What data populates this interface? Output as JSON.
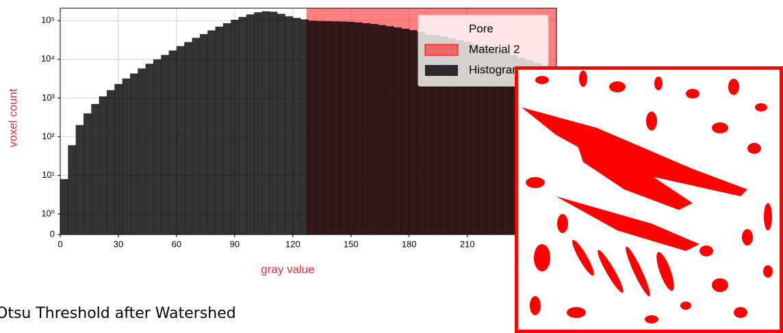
{
  "chart_data": {
    "type": "histogram",
    "xlabel": "gray value",
    "ylabel": "voxel count",
    "label_color": "#e0303a",
    "yscale": "symlog",
    "grid": true,
    "legend": "upper right",
    "xlim": [
      0,
      256
    ],
    "ylim": [
      0,
      210000
    ],
    "xticks": [
      0,
      30,
      60,
      90,
      120,
      150,
      180,
      210
    ],
    "yticks": [
      0,
      {
        "value": 1,
        "label": "10⁰"
      },
      {
        "value": 10,
        "label": "10¹"
      },
      {
        "value": 100,
        "label": "10²"
      },
      {
        "value": 1000,
        "label": "10³"
      },
      {
        "value": 10000,
        "label": "10⁴"
      },
      {
        "value": 100000,
        "label": "10⁵"
      }
    ],
    "spans": [
      {
        "name": "Pore",
        "color": "#fde8e8"
      },
      {
        "name": "Material 2",
        "color": "#ff0000",
        "range": [
          127,
          256
        ]
      }
    ],
    "name": "Histogram",
    "color": "#000000",
    "bins": [
      0,
      4,
      8,
      12,
      16,
      20,
      24,
      28,
      32,
      36,
      40,
      44,
      48,
      52,
      56,
      60,
      64,
      68,
      72,
      76,
      80,
      84,
      88,
      92,
      96,
      100,
      104,
      108,
      112,
      116,
      120,
      124,
      128,
      132,
      136,
      140,
      144,
      148,
      152,
      156,
      160,
      164,
      168,
      172,
      176,
      180,
      184,
      188,
      192,
      196,
      200,
      204,
      208,
      212,
      216,
      220,
      224,
      228,
      232,
      236,
      240,
      244,
      248,
      252,
      256
    ],
    "values": [
      8,
      60,
      200,
      400,
      700,
      1100,
      1600,
      2300,
      3200,
      4300,
      5800,
      7700,
      10000,
      13000,
      17000,
      22000,
      28000,
      36000,
      45000,
      56000,
      70000,
      86000,
      105000,
      125000,
      145000,
      165000,
      175000,
      170000,
      150000,
      130000,
      118000,
      108000,
      100000,
      98000,
      97000,
      96000,
      95000,
      93000,
      90000,
      86000,
      82000,
      77000,
      72000,
      67000,
      62000,
      57000,
      52000,
      47000,
      43000,
      39000,
      35000,
      31000,
      28000,
      25000,
      22000,
      19000,
      17000,
      15000,
      13000,
      11000,
      9500,
      8000,
      7000,
      6000
    ]
  },
  "caption": "Otsu Threshold after Watershed"
}
